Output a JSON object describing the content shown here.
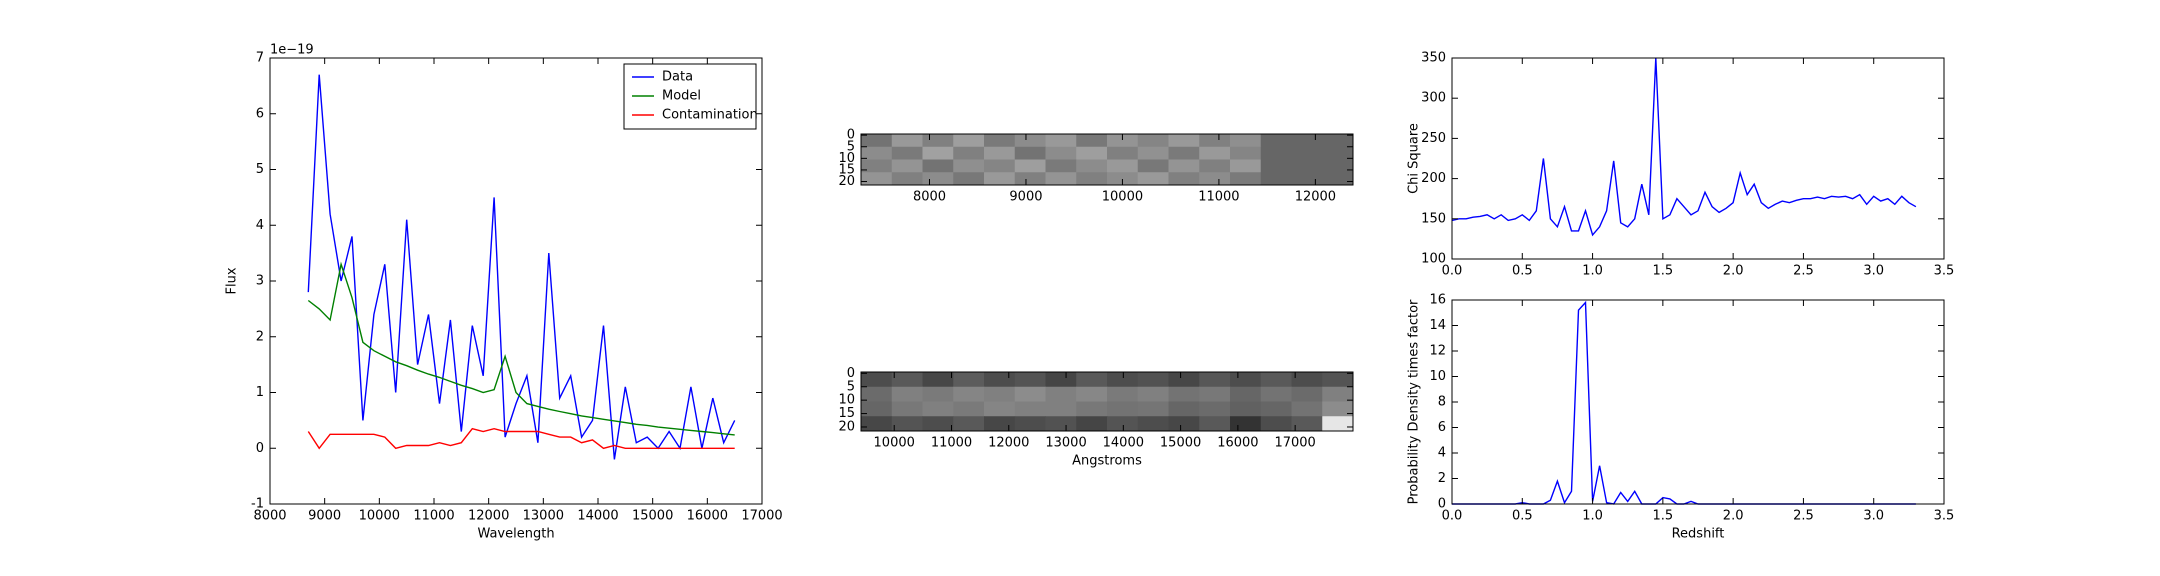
{
  "chart_data": [
    {
      "type": "line",
      "xlabel": "Wavelength",
      "ylabel": "Flux",
      "offset_label": "1e−19",
      "x": [
        8700,
        8900,
        9100,
        9300,
        9500,
        9700,
        9900,
        10100,
        10300,
        10500,
        10700,
        10900,
        11100,
        11300,
        11500,
        11700,
        11900,
        12100,
        12300,
        12500,
        12700,
        12900,
        13100,
        13300,
        13500,
        13700,
        13900,
        14100,
        14300,
        14500,
        14700,
        14900,
        15100,
        15300,
        15500,
        15700,
        15900,
        16100,
        16300,
        16500
      ],
      "series": [
        {
          "name": "Data",
          "color": "#0000ff",
          "values": [
            2.8,
            6.7,
            4.2,
            3.0,
            3.8,
            0.5,
            2.4,
            3.3,
            1.0,
            4.1,
            1.5,
            2.4,
            0.8,
            2.3,
            0.3,
            2.2,
            1.3,
            4.5,
            0.2,
            0.8,
            1.3,
            0.1,
            3.5,
            0.9,
            1.3,
            0.2,
            0.5,
            2.2,
            -0.2,
            1.1,
            0.1,
            0.2,
            0.0,
            0.3,
            0.0,
            1.1,
            0.0,
            0.9,
            0.1,
            0.5
          ]
        },
        {
          "name": "Model",
          "color": "#008000",
          "values": [
            2.65,
            2.5,
            2.3,
            3.3,
            2.7,
            1.9,
            1.75,
            1.65,
            1.55,
            1.48,
            1.4,
            1.33,
            1.27,
            1.2,
            1.13,
            1.07,
            1.0,
            1.05,
            1.65,
            1.0,
            0.8,
            0.75,
            0.7,
            0.66,
            0.62,
            0.58,
            0.55,
            0.52,
            0.49,
            0.46,
            0.43,
            0.41,
            0.38,
            0.36,
            0.34,
            0.32,
            0.3,
            0.28,
            0.26,
            0.24
          ]
        },
        {
          "name": "Contamination",
          "color": "#ff0000",
          "values": [
            0.3,
            0.0,
            0.25,
            0.25,
            0.25,
            0.25,
            0.25,
            0.2,
            0.0,
            0.05,
            0.05,
            0.05,
            0.1,
            0.05,
            0.1,
            0.35,
            0.3,
            0.35,
            0.3,
            0.3,
            0.3,
            0.3,
            0.25,
            0.2,
            0.2,
            0.1,
            0.15,
            0.0,
            0.05,
            0.0,
            0.0,
            0.0,
            0.0,
            0.0,
            0.0,
            0.0,
            0.0,
            0.0,
            0.0,
            0.0
          ]
        }
      ],
      "xlim": [
        8000,
        17000
      ],
      "xticks": [
        8000,
        9000,
        10000,
        11000,
        12000,
        13000,
        14000,
        15000,
        16000,
        17000
      ],
      "ylim": [
        -1,
        7
      ],
      "yticks": [
        -1,
        0,
        1,
        2,
        3,
        4,
        5,
        6,
        7
      ],
      "legend": "upper right"
    },
    {
      "type": "heatmap",
      "xlim": [
        7290,
        12390
      ],
      "xticks": [
        8000,
        9000,
        10000,
        11000,
        12000
      ],
      "ylim": [
        21.5,
        -0.5
      ],
      "yticks": [
        0,
        5,
        10,
        15,
        20
      ],
      "values": [
        [
          0.45,
          0.6,
          0.5,
          0.62,
          0.48,
          0.55,
          0.6,
          0.47,
          0.58,
          0.52,
          0.6,
          0.5,
          0.56,
          0.4,
          0.4,
          0.4
        ],
        [
          0.55,
          0.48,
          0.63,
          0.5,
          0.6,
          0.45,
          0.55,
          0.62,
          0.5,
          0.57,
          0.48,
          0.6,
          0.52,
          0.4,
          0.4,
          0.4
        ],
        [
          0.5,
          0.58,
          0.45,
          0.56,
          0.52,
          0.62,
          0.48,
          0.55,
          0.6,
          0.47,
          0.58,
          0.5,
          0.6,
          0.4,
          0.4,
          0.4
        ],
        [
          0.58,
          0.5,
          0.55,
          0.47,
          0.6,
          0.5,
          0.58,
          0.5,
          0.55,
          0.6,
          0.5,
          0.55,
          0.48,
          0.4,
          0.4,
          0.4
        ]
      ]
    },
    {
      "type": "heatmap",
      "xlabel": "Angstroms",
      "xlim": [
        9420,
        18010
      ],
      "xticks": [
        10000,
        11000,
        12000,
        13000,
        14000,
        15000,
        16000,
        17000
      ],
      "ylim": [
        21.5,
        -0.5
      ],
      "yticks": [
        0,
        5,
        10,
        15,
        20
      ],
      "values": [
        [
          0.3,
          0.35,
          0.28,
          0.36,
          0.3,
          0.33,
          0.27,
          0.35,
          0.3,
          0.32,
          0.28,
          0.34,
          0.3,
          0.35,
          0.3,
          0.33
        ],
        [
          0.42,
          0.5,
          0.48,
          0.52,
          0.5,
          0.55,
          0.5,
          0.53,
          0.48,
          0.5,
          0.45,
          0.47,
          0.4,
          0.45,
          0.42,
          0.5
        ],
        [
          0.4,
          0.47,
          0.5,
          0.48,
          0.52,
          0.5,
          0.5,
          0.47,
          0.45,
          0.46,
          0.4,
          0.42,
          0.38,
          0.4,
          0.45,
          0.55
        ],
        [
          0.28,
          0.33,
          0.3,
          0.35,
          0.28,
          0.3,
          0.32,
          0.27,
          0.33,
          0.3,
          0.28,
          0.35,
          0.2,
          0.3,
          0.35,
          0.9
        ]
      ]
    },
    {
      "type": "line",
      "ylabel": "Chi Square",
      "x": [
        0,
        0.05,
        0.1,
        0.15,
        0.2,
        0.25,
        0.3,
        0.35,
        0.4,
        0.45,
        0.5,
        0.55,
        0.6,
        0.65,
        0.7,
        0.75,
        0.8,
        0.85,
        0.9,
        0.95,
        1.0,
        1.05,
        1.1,
        1.15,
        1.2,
        1.25,
        1.3,
        1.35,
        1.4,
        1.45,
        1.5,
        1.55,
        1.6,
        1.65,
        1.7,
        1.75,
        1.8,
        1.85,
        1.9,
        1.95,
        2.0,
        2.05,
        2.1,
        2.15,
        2.2,
        2.25,
        2.3,
        2.35,
        2.4,
        2.45,
        2.5,
        2.55,
        2.6,
        2.65,
        2.7,
        2.75,
        2.8,
        2.85,
        2.9,
        2.95,
        3.0,
        3.05,
        3.1,
        3.15,
        3.2,
        3.25,
        3.3
      ],
      "series": [
        {
          "color": "#0000ff",
          "values": [
            148,
            150,
            150,
            152,
            153,
            155,
            150,
            155,
            148,
            150,
            155,
            148,
            160,
            225,
            150,
            140,
            165,
            135,
            135,
            160,
            130,
            140,
            160,
            222,
            145,
            140,
            150,
            193,
            155,
            350,
            150,
            155,
            175,
            165,
            155,
            160,
            183,
            165,
            158,
            163,
            170,
            207,
            180,
            193,
            170,
            163,
            168,
            172,
            170,
            173,
            175,
            175,
            177,
            175,
            178,
            177,
            178,
            175,
            180,
            168,
            178,
            172,
            175,
            168,
            178,
            170,
            165
          ]
        }
      ],
      "xlim": [
        0,
        3.5
      ],
      "xticks": [
        {
          "value": 0,
          "label": "0.0"
        },
        0.5,
        {
          "value": 1,
          "label": "1.0"
        },
        1.5,
        {
          "value": 2,
          "label": "2.0"
        },
        2.5,
        {
          "value": 3,
          "label": "3.0"
        },
        3.5
      ],
      "ylim": [
        100,
        350
      ],
      "yticks": [
        100,
        150,
        200,
        250,
        300,
        350
      ]
    },
    {
      "type": "line",
      "xlabel": "Redshift",
      "ylabel": "Probability Density times factor",
      "x": [
        0,
        0.05,
        0.1,
        0.15,
        0.2,
        0.25,
        0.3,
        0.35,
        0.4,
        0.45,
        0.5,
        0.55,
        0.6,
        0.65,
        0.7,
        0.75,
        0.8,
        0.85,
        0.9,
        0.95,
        1.0,
        1.05,
        1.1,
        1.15,
        1.2,
        1.25,
        1.3,
        1.35,
        1.4,
        1.45,
        1.5,
        1.55,
        1.6,
        1.65,
        1.7,
        1.75,
        1.8,
        1.85,
        1.9,
        1.95,
        2.0,
        2.05,
        2.1,
        2.15,
        2.2,
        2.25,
        2.3,
        2.35,
        2.4,
        2.45,
        2.5,
        2.55,
        2.6,
        2.65,
        2.7,
        2.75,
        2.8,
        2.85,
        2.9,
        2.95,
        3.0,
        3.05,
        3.1,
        3.15,
        3.2,
        3.25,
        3.3
      ],
      "series": [
        {
          "color": "#0000ff",
          "values": [
            0,
            0,
            0,
            0,
            0,
            0,
            0,
            0,
            0,
            0,
            0.1,
            0,
            0,
            0,
            0.3,
            1.8,
            0.1,
            1.0,
            15.2,
            15.8,
            0.2,
            3.0,
            0.1,
            0,
            0.9,
            0.2,
            1.0,
            0,
            0,
            0,
            0.5,
            0.4,
            0,
            0,
            0.2,
            0,
            0,
            0,
            0,
            0,
            0,
            0,
            0,
            0,
            0,
            0,
            0,
            0,
            0,
            0,
            0,
            0,
            0,
            0,
            0,
            0,
            0,
            0,
            0,
            0,
            0,
            0,
            0,
            0,
            0,
            0,
            0
          ]
        }
      ],
      "xlim": [
        0,
        3.5
      ],
      "xticks": [
        {
          "value": 0,
          "label": "0.0"
        },
        0.5,
        {
          "value": 1,
          "label": "1.0"
        },
        1.5,
        {
          "value": 2,
          "label": "2.0"
        },
        2.5,
        {
          "value": 3,
          "label": "3.0"
        },
        3.5
      ],
      "ylim": [
        0,
        16
      ],
      "yticks": [
        0,
        2,
        4,
        6,
        8,
        10,
        12,
        14,
        16
      ]
    }
  ]
}
